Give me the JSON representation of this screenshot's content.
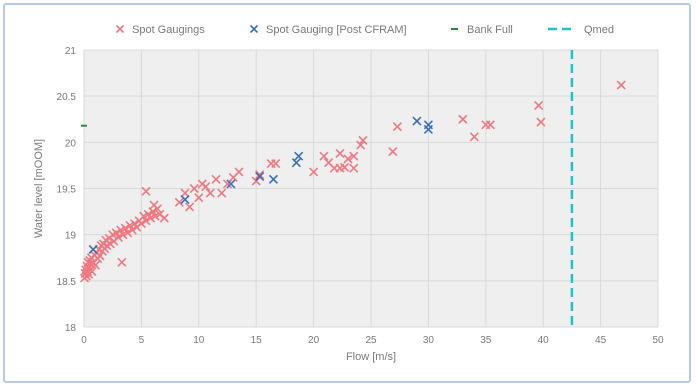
{
  "chart_data": {
    "type": "scatter",
    "xlabel": "Flow [m/s]",
    "ylabel": "Water level [mOOM]",
    "xlim": [
      0,
      50
    ],
    "ylim": [
      18,
      21
    ],
    "xticks": [
      "0",
      "5",
      "10",
      "15",
      "20",
      "25",
      "30",
      "35",
      "40",
      "45",
      "50"
    ],
    "yticks": [
      "18",
      "18.5",
      "19",
      "19.5",
      "20",
      "20.5",
      "21"
    ],
    "grid": true,
    "legend_position": "top",
    "series": [
      {
        "name": "Spot Gaugings",
        "marker": "x",
        "color": "#f07880",
        "points": [
          [
            0.05,
            18.53
          ],
          [
            0.1,
            18.58
          ],
          [
            0.15,
            18.62
          ],
          [
            0.2,
            18.55
          ],
          [
            0.25,
            18.66
          ],
          [
            0.3,
            18.6
          ],
          [
            0.35,
            18.7
          ],
          [
            0.4,
            18.57
          ],
          [
            0.45,
            18.64
          ],
          [
            0.5,
            18.72
          ],
          [
            0.55,
            18.62
          ],
          [
            0.6,
            18.68
          ],
          [
            0.65,
            18.75
          ],
          [
            0.7,
            18.6
          ],
          [
            0.8,
            18.7
          ],
          [
            0.9,
            18.78
          ],
          [
            1.0,
            18.67
          ],
          [
            1.1,
            18.8
          ],
          [
            1.2,
            18.74
          ],
          [
            1.3,
            18.84
          ],
          [
            1.4,
            18.77
          ],
          [
            1.5,
            18.88
          ],
          [
            1.6,
            18.82
          ],
          [
            1.7,
            18.9
          ],
          [
            1.8,
            18.85
          ],
          [
            1.9,
            18.94
          ],
          [
            2.0,
            18.88
          ],
          [
            2.2,
            18.96
          ],
          [
            2.3,
            18.9
          ],
          [
            2.5,
            19.0
          ],
          [
            2.6,
            18.93
          ],
          [
            2.8,
            19.02
          ],
          [
            3.0,
            18.97
          ],
          [
            3.2,
            19.05
          ],
          [
            3.3,
            18.7
          ],
          [
            3.4,
            19.0
          ],
          [
            3.6,
            19.07
          ],
          [
            3.8,
            19.02
          ],
          [
            4.0,
            19.1
          ],
          [
            4.2,
            19.05
          ],
          [
            4.4,
            19.12
          ],
          [
            4.6,
            19.08
          ],
          [
            4.8,
            19.15
          ],
          [
            5.0,
            19.12
          ],
          [
            5.2,
            19.2
          ],
          [
            5.4,
            19.15
          ],
          [
            5.6,
            19.22
          ],
          [
            5.8,
            19.18
          ],
          [
            6.0,
            19.25
          ],
          [
            6.2,
            19.2
          ],
          [
            6.4,
            19.28
          ],
          [
            6.6,
            19.22
          ],
          [
            7.0,
            19.18
          ],
          [
            5.4,
            19.47
          ],
          [
            6.1,
            19.32
          ],
          [
            8.3,
            19.35
          ],
          [
            8.8,
            19.45
          ],
          [
            9.2,
            19.3
          ],
          [
            9.6,
            19.5
          ],
          [
            10.0,
            19.4
          ],
          [
            10.3,
            19.55
          ],
          [
            10.6,
            19.52
          ],
          [
            11.0,
            19.45
          ],
          [
            11.5,
            19.6
          ],
          [
            12.0,
            19.45
          ],
          [
            12.5,
            19.55
          ],
          [
            13.0,
            19.62
          ],
          [
            13.5,
            19.68
          ],
          [
            15.0,
            19.58
          ],
          [
            15.3,
            19.65
          ],
          [
            16.3,
            19.77
          ],
          [
            16.7,
            19.77
          ],
          [
            20.0,
            19.68
          ],
          [
            20.9,
            19.85
          ],
          [
            21.3,
            19.78
          ],
          [
            21.8,
            19.72
          ],
          [
            22.3,
            19.72
          ],
          [
            22.7,
            19.73
          ],
          [
            22.3,
            19.88
          ],
          [
            23.0,
            19.82
          ],
          [
            23.5,
            19.85
          ],
          [
            23.5,
            19.72
          ],
          [
            24.1,
            19.97
          ],
          [
            24.3,
            20.02
          ],
          [
            26.9,
            19.9
          ],
          [
            27.3,
            20.17
          ],
          [
            33.0,
            20.25
          ],
          [
            34.0,
            20.06
          ],
          [
            35.0,
            20.19
          ],
          [
            35.4,
            20.19
          ],
          [
            39.6,
            20.4
          ],
          [
            39.8,
            20.22
          ],
          [
            46.8,
            20.62
          ]
        ]
      },
      {
        "name": "Spot Gauging [Post CFRAM]",
        "marker": "x",
        "color": "#3b6fb6",
        "points": [
          [
            0.8,
            18.84
          ],
          [
            8.8,
            19.38
          ],
          [
            12.8,
            19.55
          ],
          [
            15.3,
            19.63
          ],
          [
            16.5,
            19.6
          ],
          [
            18.5,
            19.78
          ],
          [
            18.7,
            19.85
          ],
          [
            29.0,
            20.23
          ],
          [
            30.0,
            20.14
          ],
          [
            30.0,
            20.19
          ]
        ]
      },
      {
        "name": "Bank Full",
        "marker": "dash",
        "color": "#2e8b3e",
        "points": [
          [
            0,
            20.18
          ]
        ]
      },
      {
        "name": "Qmed",
        "marker": "dashed-line",
        "color": "#1fc3c9",
        "x": 42.5
      }
    ]
  }
}
